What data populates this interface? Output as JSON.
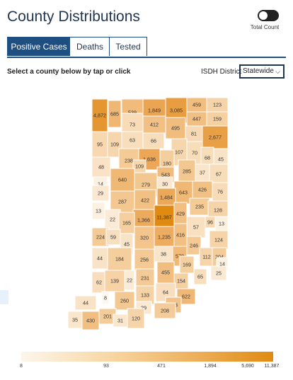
{
  "header": {
    "title": "County Distributions"
  },
  "toggle": {
    "label": "Total Count",
    "on": false
  },
  "tabs": [
    {
      "label": "Positive Cases",
      "active": true
    },
    {
      "label": "Deaths",
      "active": false
    },
    {
      "label": "Tested",
      "active": false
    }
  ],
  "instruction": "Select a county below by tap or click",
  "district": {
    "label": "ISDH District",
    "selected": "Statewide"
  },
  "colors": {
    "accent": "#1f4e80",
    "scale_low": "#fdf6ec",
    "scale_high": "#e08a12"
  },
  "county_values": [
    "4,872",
    "685",
    "539",
    "1,849",
    "3,085",
    "459",
    "123",
    "447",
    "159",
    "73",
    "412",
    "495",
    "81",
    "2,677",
    "95",
    "109",
    "63",
    "66",
    "107",
    "70",
    "68",
    "45",
    "48",
    "238",
    "1,636",
    "109",
    "180",
    "285",
    "37",
    "67",
    "14",
    "640",
    "279",
    "543",
    "30",
    "643",
    "426",
    "76",
    "29",
    "422",
    "1,484",
    "235",
    "13",
    "287",
    "22",
    "1,366",
    "11,387",
    "429",
    "128",
    "165",
    "57",
    "96",
    "13",
    "224",
    "59",
    "320",
    "1,235",
    "416",
    "124",
    "45",
    "246",
    "44",
    "184",
    "256",
    "38",
    "578",
    "112",
    "204",
    "169",
    "14",
    "231",
    "455",
    "65",
    "25",
    "62",
    "139",
    "22",
    "154",
    "133",
    "64",
    "8",
    "260",
    "622",
    "44",
    "29",
    "363",
    "208",
    "35",
    "430",
    "201",
    "31",
    "120"
  ],
  "legend": {
    "ticks": [
      "8",
      "93",
      "471",
      "1,894",
      "5,690",
      "11,387"
    ]
  }
}
